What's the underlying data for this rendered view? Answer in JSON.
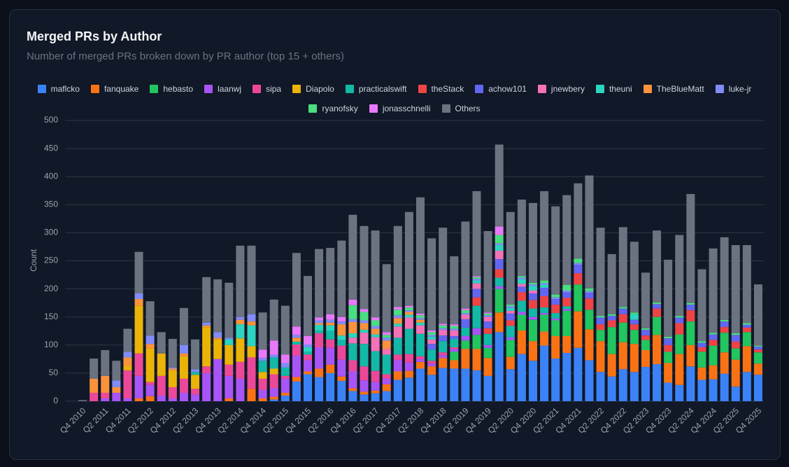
{
  "chart_data": {
    "type": "stacked_bar",
    "title": "Merged PRs by Author",
    "subtitle": "Number of merged PRs broken down by PR author (top 15 + others)",
    "y_label": "Count",
    "legend": "top",
    "grid": true,
    "ylim": [
      0,
      500
    ],
    "yticks": [
      0,
      50,
      100,
      150,
      200,
      250,
      300,
      350,
      400,
      450,
      500
    ],
    "categories": [
      "Q4 2010",
      null,
      "Q2 2011",
      null,
      "Q4 2011",
      null,
      "Q2 2012",
      null,
      "Q4 2012",
      null,
      "Q2 2013",
      null,
      "Q4 2013",
      null,
      "Q2 2014",
      null,
      "Q4 2014",
      null,
      "Q2 2015",
      null,
      "Q4 2015",
      null,
      "Q2 2016",
      null,
      "Q4 2016",
      null,
      "Q2 2017",
      null,
      "Q4 2017",
      null,
      "Q2 2018",
      null,
      "Q4 2018",
      null,
      "Q2 2019",
      null,
      "Q4 2019",
      null,
      "Q2 2020",
      null,
      "Q4 2020",
      null,
      "Q2 2021",
      null,
      "Q4 2021",
      null,
      "Q2 2022",
      null,
      "Q4 2022",
      null,
      "Q2 2023",
      null,
      "Q4 2023",
      null,
      "Q2 2024",
      null,
      "Q4 2024",
      null,
      "Q2 2025",
      null,
      "Q4 2025"
    ],
    "series": [
      {
        "name": "maflcko",
        "color": "#3b82f6",
        "values": [
          0,
          0,
          0,
          0,
          0,
          0,
          0,
          0,
          0,
          0,
          0,
          0,
          0,
          0,
          0,
          0,
          0,
          3,
          10,
          35,
          48,
          43,
          50,
          36,
          18,
          12,
          14,
          18,
          38,
          42,
          58,
          47,
          59,
          58,
          58,
          55,
          45,
          123,
          57,
          84,
          72,
          99,
          76,
          86,
          95,
          73,
          52,
          44,
          57,
          52,
          61,
          66,
          33,
          29,
          62,
          38,
          39,
          49,
          26,
          52,
          47
        ]
      },
      {
        "name": "fanquake",
        "color": "#f97316",
        "values": [
          0,
          0,
          0,
          0,
          0,
          5,
          9,
          0,
          0,
          0,
          0,
          0,
          0,
          5,
          0,
          22,
          5,
          5,
          5,
          8,
          5,
          15,
          15,
          8,
          5,
          5,
          5,
          12,
          15,
          12,
          12,
          15,
          18,
          15,
          35,
          38,
          32,
          35,
          22,
          42,
          35,
          25,
          40,
          30,
          65,
          55,
          55,
          40,
          48,
          50,
          30,
          52,
          35,
          55,
          38,
          22,
          25,
          38,
          48,
          46,
          20
        ]
      },
      {
        "name": "hebasto",
        "color": "#22c55e",
        "values": [
          0,
          0,
          0,
          0,
          0,
          0,
          0,
          0,
          0,
          0,
          0,
          0,
          0,
          0,
          0,
          0,
          0,
          0,
          0,
          0,
          0,
          0,
          0,
          0,
          0,
          0,
          0,
          0,
          0,
          0,
          0,
          0,
          0,
          15,
          15,
          25,
          18,
          42,
          30,
          28,
          38,
          30,
          28,
          45,
          48,
          35,
          20,
          48,
          35,
          25,
          18,
          32,
          20,
          35,
          42,
          28,
          35,
          35,
          20,
          25,
          20
        ]
      },
      {
        "name": "laanwj",
        "color": "#a855f7",
        "values": [
          0,
          0,
          5,
          15,
          5,
          40,
          20,
          10,
          5,
          15,
          12,
          50,
          75,
          40,
          40,
          0,
          15,
          15,
          25,
          38,
          20,
          38,
          30,
          30,
          30,
          20,
          15,
          10,
          20,
          15,
          5,
          5,
          5,
          5,
          8,
          12,
          5,
          5,
          5,
          5,
          5,
          3,
          3,
          3,
          0,
          0,
          0,
          0,
          0,
          0,
          0,
          0,
          0,
          0,
          0,
          0,
          0,
          0,
          0,
          0,
          0
        ]
      },
      {
        "name": "sipa",
        "color": "#ec4899",
        "values": [
          0,
          15,
          10,
          0,
          50,
          40,
          5,
          35,
          20,
          25,
          10,
          12,
          0,
          20,
          30,
          56,
          20,
          25,
          5,
          20,
          10,
          25,
          15,
          25,
          20,
          25,
          20,
          8,
          10,
          15,
          5,
          5,
          5,
          3,
          0,
          0,
          0,
          0,
          0,
          0,
          0,
          0,
          0,
          0,
          0,
          0,
          0,
          0,
          0,
          0,
          0,
          0,
          0,
          0,
          0,
          0,
          0,
          0,
          0,
          0,
          0
        ]
      },
      {
        "name": "Diapolo",
        "color": "#eab308",
        "values": [
          0,
          0,
          0,
          0,
          8,
          85,
          60,
          40,
          30,
          40,
          25,
          70,
          35,
          35,
          42,
          20,
          12,
          10,
          0,
          0,
          0,
          0,
          0,
          0,
          0,
          0,
          0,
          0,
          0,
          0,
          0,
          0,
          0,
          0,
          0,
          0,
          0,
          0,
          0,
          0,
          0,
          0,
          0,
          0,
          0,
          0,
          0,
          0,
          0,
          0,
          0,
          0,
          0,
          0,
          0,
          0,
          0,
          0,
          0,
          0,
          0
        ]
      },
      {
        "name": "practicalswift",
        "color": "#14b8a6",
        "values": [
          0,
          0,
          0,
          0,
          0,
          0,
          0,
          0,
          0,
          0,
          5,
          0,
          0,
          0,
          0,
          0,
          20,
          20,
          15,
          5,
          5,
          5,
          15,
          10,
          30,
          40,
          35,
          35,
          30,
          45,
          40,
          20,
          20,
          15,
          15,
          40,
          20,
          15,
          20,
          20,
          15,
          10,
          10,
          5,
          0,
          0,
          0,
          0,
          0,
          0,
          0,
          0,
          0,
          0,
          0,
          0,
          0,
          0,
          0,
          0,
          0
        ]
      },
      {
        "name": "theStack",
        "color": "#ef4444",
        "values": [
          0,
          0,
          0,
          0,
          0,
          0,
          0,
          0,
          0,
          0,
          0,
          0,
          0,
          0,
          0,
          0,
          0,
          0,
          0,
          0,
          0,
          0,
          0,
          0,
          0,
          0,
          0,
          0,
          0,
          0,
          0,
          0,
          0,
          0,
          0,
          15,
          10,
          15,
          10,
          15,
          15,
          20,
          15,
          15,
          20,
          20,
          10,
          12,
          15,
          10,
          8,
          15,
          12,
          20,
          20,
          8,
          10,
          10,
          12,
          8,
          5
        ]
      },
      {
        "name": "achow101",
        "color": "#6366f1",
        "values": [
          0,
          0,
          0,
          0,
          0,
          0,
          0,
          0,
          0,
          0,
          0,
          0,
          0,
          0,
          0,
          0,
          0,
          0,
          0,
          0,
          0,
          0,
          0,
          0,
          0,
          0,
          0,
          0,
          0,
          0,
          0,
          10,
          10,
          5,
          15,
          15,
          12,
          18,
          12,
          10,
          12,
          15,
          10,
          10,
          15,
          10,
          12,
          8,
          10,
          8,
          10,
          8,
          12,
          10,
          10,
          8,
          10,
          10,
          12,
          5,
          5
        ]
      },
      {
        "name": "jnewbery",
        "color": "#f472b6",
        "values": [
          0,
          0,
          0,
          0,
          0,
          0,
          0,
          0,
          0,
          0,
          0,
          0,
          0,
          0,
          0,
          0,
          0,
          0,
          0,
          0,
          0,
          0,
          0,
          0,
          10,
          20,
          25,
          10,
          20,
          20,
          15,
          8,
          10,
          10,
          8,
          10,
          8,
          15,
          5,
          5,
          5,
          0,
          0,
          0,
          0,
          0,
          0,
          0,
          0,
          0,
          0,
          0,
          0,
          0,
          0,
          0,
          0,
          0,
          0,
          0,
          0
        ]
      },
      {
        "name": "theuni",
        "color": "#2dd4bf",
        "values": [
          0,
          0,
          0,
          0,
          0,
          0,
          0,
          0,
          0,
          0,
          0,
          0,
          0,
          10,
          25,
          37,
          0,
          0,
          0,
          0,
          8,
          10,
          10,
          8,
          8,
          5,
          5,
          0,
          5,
          5,
          5,
          5,
          0,
          0,
          0,
          5,
          0,
          10,
          5,
          8,
          8,
          5,
          0,
          0,
          0,
          0,
          0,
          0,
          0,
          10,
          0,
          0,
          0,
          0,
          0,
          0,
          0,
          0,
          0,
          0,
          0
        ]
      },
      {
        "name": "TheBlueMatt",
        "color": "#fb923c",
        "values": [
          0,
          25,
          30,
          10,
          15,
          12,
          8,
          0,
          3,
          5,
          0,
          3,
          3,
          0,
          8,
          7,
          0,
          0,
          0,
          7,
          0,
          3,
          5,
          20,
          20,
          12,
          10,
          15,
          10,
          5,
          5,
          0,
          0,
          0,
          0,
          0,
          0,
          0,
          0,
          0,
          0,
          0,
          0,
          0,
          0,
          0,
          0,
          0,
          0,
          0,
          0,
          0,
          0,
          0,
          0,
          0,
          0,
          0,
          0,
          0,
          0
        ]
      },
      {
        "name": "luke-jr",
        "color": "#818cf8",
        "values": [
          0,
          0,
          0,
          12,
          10,
          10,
          15,
          0,
          2,
          15,
          5,
          5,
          10,
          3,
          5,
          13,
          5,
          5,
          8,
          5,
          5,
          5,
          5,
          5,
          5,
          5,
          5,
          5,
          5,
          3,
          3,
          3,
          3,
          3,
          3,
          3,
          3,
          3,
          3,
          3,
          3,
          3,
          3,
          3,
          3,
          3,
          0,
          0,
          0,
          0,
          0,
          0,
          0,
          0,
          0,
          0,
          0,
          0,
          0,
          0,
          0
        ]
      },
      {
        "name": "ryanofsky",
        "color": "#4ade80",
        "values": [
          0,
          0,
          0,
          0,
          0,
          0,
          0,
          0,
          0,
          0,
          0,
          0,
          0,
          0,
          0,
          0,
          0,
          0,
          0,
          0,
          0,
          0,
          0,
          0,
          25,
          15,
          10,
          5,
          10,
          5,
          5,
          5,
          5,
          5,
          5,
          3,
          3,
          15,
          3,
          3,
          3,
          5,
          5,
          10,
          8,
          5,
          3,
          3,
          3,
          3,
          3,
          3,
          3,
          3,
          3,
          3,
          3,
          3,
          3,
          3,
          2
        ]
      },
      {
        "name": "jonasschnelli",
        "color": "#e879f9",
        "values": [
          0,
          0,
          0,
          0,
          0,
          0,
          0,
          0,
          0,
          0,
          0,
          0,
          0,
          0,
          0,
          0,
          15,
          25,
          15,
          15,
          15,
          5,
          10,
          8,
          10,
          5,
          5,
          5,
          5,
          3,
          3,
          3,
          3,
          3,
          3,
          2,
          2,
          15,
          0,
          0,
          0,
          0,
          0,
          0,
          0,
          0,
          0,
          0,
          0,
          0,
          0,
          0,
          0,
          0,
          0,
          0,
          0,
          0,
          0,
          0,
          0
        ]
      },
      {
        "name": "Others",
        "color": "#6b7280",
        "values": [
          2,
          36,
          46,
          35,
          41,
          74,
          61,
          38,
          51,
          66,
          53,
          81,
          94,
          98,
          127,
          122,
          66,
          73,
          87,
          131,
          107,
          122,
          118,
          136,
          151,
          148,
          155,
          121,
          144,
          167,
          207,
          164,
          171,
          121,
          155,
          151,
          145,
          146,
          165,
          136,
          142,
          159,
          157,
          160,
          134,
          201,
          157,
          107,
          142,
          126,
          99,
          128,
          137,
          144,
          194,
          128,
          150,
          147,
          157,
          139,
          109
        ]
      }
    ]
  }
}
